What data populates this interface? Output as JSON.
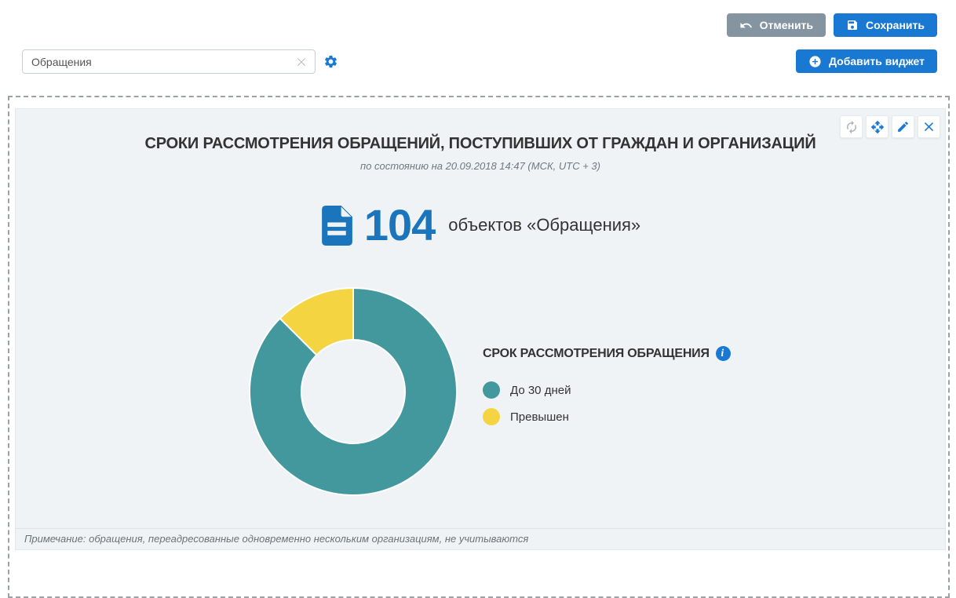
{
  "toolbar": {
    "cancel_label": "Отменить",
    "save_label": "Сохранить",
    "add_widget_label": "Добавить виджет"
  },
  "filter": {
    "value": "Обращения"
  },
  "widget": {
    "title": "СРОКИ РАССМОТРЕНИЯ ОБРАЩЕНИЙ, ПОСТУПИВШИХ ОТ ГРАЖДАН И ОРГАНИЗАЦИЙ",
    "timestamp": "по состоянию на 20.09.2018 14:47 (МСК, UTC + 3)",
    "counter": {
      "value": "104",
      "label": "объектов «Обращения»"
    },
    "note": "Примечание: обращения, переадресованные одновременно нескольким организациям, не учитываются"
  },
  "chart_data": {
    "type": "pie",
    "donut": true,
    "title": "СРОК РАССМОТРЕНИЯ ОБРАЩЕНИЯ",
    "categories": [
      "До 30 дней",
      "Превышен"
    ],
    "values": [
      91,
      13
    ],
    "total": 104,
    "colors": [
      "#43989e",
      "#f5d442"
    ],
    "legend_position": "right",
    "start_angle_deg": 0,
    "direction": "clockwise"
  },
  "icons": {
    "cancel": "undo-arrow",
    "save": "floppy-disk",
    "add_widget": "plus-circle",
    "filter_clear": "x-mark",
    "settings": "gear",
    "refresh": "circular-arrows",
    "move": "four-way-arrows",
    "edit": "pencil",
    "close": "x-mark",
    "counter": "document",
    "legend_info": "info-circle"
  },
  "colors": {
    "accent_blue": "#1878d2",
    "counter_blue": "#1b75bc",
    "cancel_gray": "#8495a1",
    "chart_teal": "#43989e",
    "chart_yellow": "#f5d442",
    "widget_background": "#eff3f6"
  }
}
